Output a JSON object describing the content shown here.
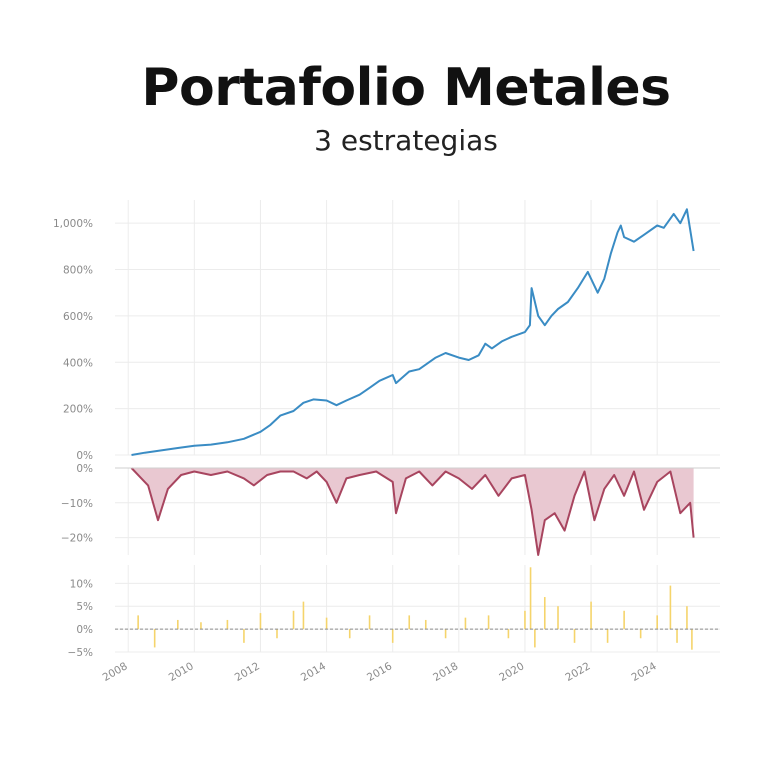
{
  "title": "Portafolio Metales",
  "subtitle": "3 estrategias",
  "chart_data": [
    {
      "type": "line",
      "panel": "cumulative-return",
      "ylim": [
        0,
        1100
      ],
      "y_ticks": [
        "0%",
        "200%",
        "400%",
        "600%",
        "800%",
        "1,000%"
      ],
      "y_tick_values": [
        0,
        200,
        400,
        600,
        800,
        1000
      ],
      "grid": true,
      "color": "#3a8cc4",
      "series": [
        {
          "x": [
            2008.1,
            2008.5,
            2009.0,
            2009.5,
            2010.0,
            2010.5,
            2011.0,
            2011.5,
            2012.0,
            2012.3,
            2012.6,
            2013.0,
            2013.3,
            2013.6,
            2014.0,
            2014.3,
            2014.6,
            2015.0,
            2015.3,
            2015.6,
            2016.0,
            2016.1,
            2016.5,
            2016.8,
            2017.0,
            2017.3,
            2017.6,
            2018.0,
            2018.3,
            2018.6,
            2018.8,
            2019.0,
            2019.3,
            2019.6,
            2020.0,
            2020.15,
            2020.2,
            2020.4,
            2020.6,
            2020.8,
            2021.0,
            2021.3,
            2021.6,
            2021.9,
            2022.2,
            2022.4,
            2022.6,
            2022.8,
            2022.9,
            2023.0,
            2023.3,
            2023.6,
            2024.0,
            2024.2,
            2024.5,
            2024.7,
            2024.9,
            2025.1
          ],
          "values": [
            0,
            10,
            20,
            30,
            40,
            45,
            55,
            70,
            100,
            130,
            170,
            190,
            225,
            240,
            235,
            215,
            235,
            260,
            290,
            320,
            345,
            310,
            360,
            370,
            390,
            420,
            440,
            420,
            410,
            430,
            480,
            460,
            490,
            510,
            530,
            560,
            720,
            600,
            560,
            600,
            630,
            660,
            720,
            790,
            700,
            760,
            870,
            960,
            990,
            940,
            920,
            950,
            990,
            980,
            1040,
            1000,
            1060,
            880
          ]
        }
      ]
    },
    {
      "type": "area",
      "panel": "drawdown",
      "ylim": [
        -25,
        0
      ],
      "y_ticks": [
        "0%",
        "−10%",
        "−20%"
      ],
      "y_tick_values": [
        0,
        -10,
        -20
      ],
      "grid": true,
      "color": "#a8455f",
      "fill": "#e9c8d1",
      "series": [
        {
          "x": [
            2008.1,
            2008.4,
            2008.6,
            2008.9,
            2009.2,
            2009.6,
            2010.0,
            2010.5,
            2011.0,
            2011.5,
            2011.8,
            2012.2,
            2012.6,
            2013.0,
            2013.4,
            2013.7,
            2014.0,
            2014.3,
            2014.6,
            2015.0,
            2015.5,
            2016.0,
            2016.1,
            2016.4,
            2016.8,
            2017.2,
            2017.6,
            2018.0,
            2018.4,
            2018.8,
            2019.2,
            2019.6,
            2020.0,
            2020.2,
            2020.4,
            2020.6,
            2020.9,
            2021.2,
            2021.5,
            2021.8,
            2022.1,
            2022.4,
            2022.7,
            2023.0,
            2023.3,
            2023.6,
            2024.0,
            2024.4,
            2024.7,
            2025.0,
            2025.1
          ],
          "values": [
            0,
            -3,
            -5,
            -15,
            -6,
            -2,
            -1,
            -2,
            -1,
            -3,
            -5,
            -2,
            -1,
            -1,
            -3,
            -1,
            -4,
            -10,
            -3,
            -2,
            -1,
            -4,
            -13,
            -3,
            -1,
            -5,
            -1,
            -3,
            -6,
            -2,
            -8,
            -3,
            -2,
            -12,
            -25,
            -15,
            -13,
            -18,
            -8,
            -1,
            -15,
            -6,
            -2,
            -8,
            -1,
            -12,
            -4,
            -1,
            -13,
            -10,
            -20
          ]
        }
      ]
    },
    {
      "type": "bar",
      "panel": "daily-returns",
      "ylim": [
        -5,
        14
      ],
      "y_ticks": [
        "−5%",
        "0%",
        "5%",
        "10%"
      ],
      "y_tick_values": [
        -5,
        0,
        5,
        10
      ],
      "grid": true,
      "color": "#f5d46b",
      "zero_line": "dashed",
      "series": [
        {
          "x": [
            2008.3,
            2008.8,
            2009.5,
            2010.2,
            2011.0,
            2011.5,
            2012.0,
            2012.5,
            2013.0,
            2013.3,
            2014.0,
            2014.7,
            2015.3,
            2016.0,
            2016.5,
            2017.0,
            2017.6,
            2018.2,
            2018.9,
            2019.5,
            2020.0,
            2020.17,
            2020.3,
            2020.6,
            2021.0,
            2021.5,
            2022.0,
            2022.5,
            2023.0,
            2023.5,
            2024.0,
            2024.4,
            2024.6,
            2024.9,
            2025.05
          ],
          "values": [
            3,
            -4,
            2,
            1.5,
            2,
            -3,
            3.5,
            -2,
            4,
            6,
            2.5,
            -2,
            3,
            -3,
            3,
            2,
            -2,
            2.5,
            3,
            -2,
            4,
            13.5,
            -4,
            7,
            5,
            -3,
            6,
            -3,
            4,
            -2,
            3,
            9.5,
            -3,
            5,
            -4.5
          ]
        }
      ]
    }
  ],
  "x_axis": {
    "ticks": [
      "2008",
      "2010",
      "2012",
      "2014",
      "2016",
      "2018",
      "2020",
      "2022",
      "2024"
    ],
    "tick_values": [
      2008,
      2010,
      2012,
      2014,
      2016,
      2018,
      2020,
      2022,
      2024
    ],
    "xlim": [
      2007.6,
      2025.9
    ]
  }
}
